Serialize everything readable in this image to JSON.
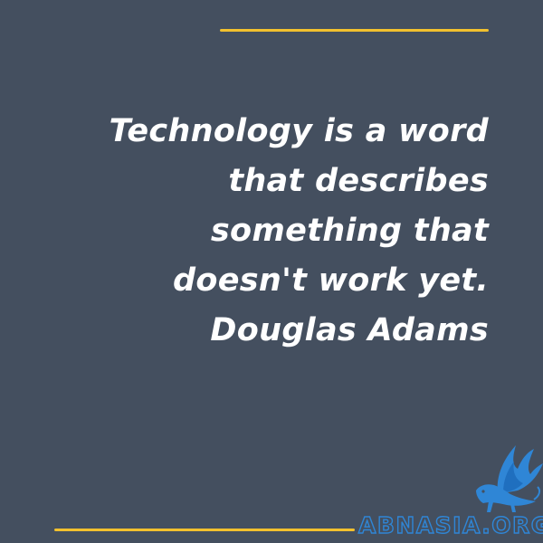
{
  "quote": {
    "lines": [
      "Technology is a word",
      "that describes",
      "something that",
      "doesn't work yet."
    ],
    "author": "Douglas Adams"
  },
  "branding": {
    "site": "ABNASIA.ORG",
    "logo_icon": "winged-lion-icon"
  },
  "colors": {
    "background": "#444f5f",
    "accent": "#f2c12e",
    "text": "#ffffff",
    "brand": "#2f86d6"
  }
}
